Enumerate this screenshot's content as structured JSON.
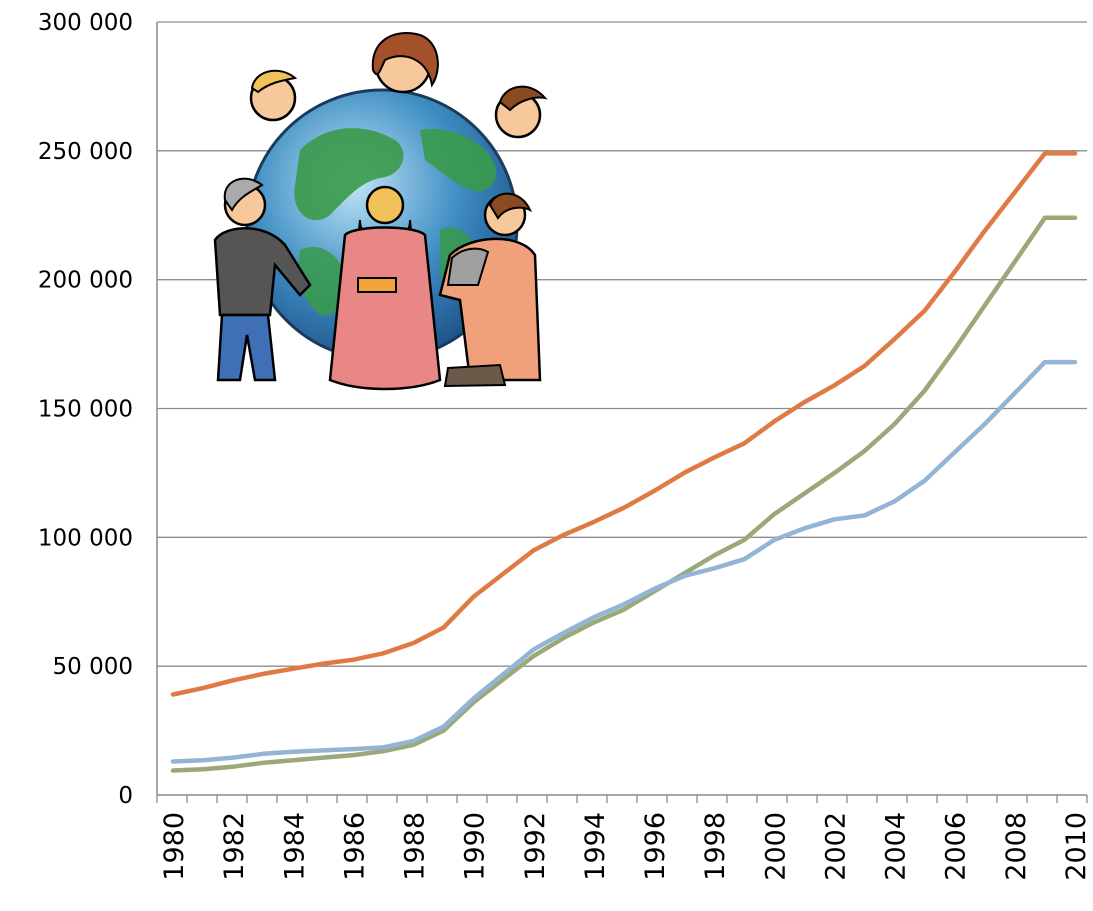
{
  "chart_data": {
    "type": "line",
    "title": "",
    "xlabel": "",
    "ylabel": "",
    "x": [
      1980,
      1981,
      1982,
      1983,
      1984,
      1985,
      1986,
      1987,
      1988,
      1989,
      1990,
      1991,
      1992,
      1993,
      1994,
      1995,
      1996,
      1997,
      1998,
      1999,
      2000,
      2001,
      2002,
      2003,
      2004,
      2005,
      2006,
      2007,
      2008,
      2009,
      2010
    ],
    "x_tick_labels": [
      "1980",
      "1982",
      "1984",
      "1986",
      "1988",
      "1990",
      "1992",
      "1994",
      "1996",
      "1998",
      "2000",
      "2002",
      "2004",
      "2006",
      "2008",
      "2010"
    ],
    "y_tick_labels": [
      "0",
      "50 000",
      "100 000",
      "150 000",
      "200 000",
      "250 000",
      "300 000"
    ],
    "ylim": [
      0,
      300000
    ],
    "grid": "horizontal",
    "legend": "none",
    "series": [
      {
        "color": "#E07A44",
        "values": [
          39000,
          41500,
          44500,
          47000,
          49000,
          51000,
          52500,
          55000,
          59000,
          65000,
          77000,
          86000,
          95000,
          101000,
          106000,
          111500,
          118000,
          125000,
          131000,
          136500,
          145000,
          152500,
          159000,
          166500,
          177000,
          188000,
          203000,
          219000,
          234000,
          249000,
          249000
        ]
      },
      {
        "color": "#9BA878",
        "values": [
          9500,
          10000,
          11000,
          12500,
          13500,
          14500,
          15500,
          17000,
          19500,
          25000,
          36000,
          45000,
          54000,
          61000,
          67000,
          72000,
          79000,
          86000,
          93000,
          99000,
          109000,
          117000,
          125000,
          133500,
          144000,
          157000,
          173000,
          190000,
          207000,
          224000,
          224000
        ]
      },
      {
        "color": "#93B4D4",
        "values": [
          13000,
          13500,
          14500,
          16000,
          16800,
          17300,
          17800,
          18500,
          21000,
          26500,
          37500,
          47000,
          56500,
          63000,
          69000,
          74000,
          80000,
          85000,
          88000,
          91500,
          99000,
          103500,
          107000,
          108500,
          114000,
          122000,
          133000,
          144000,
          156000,
          168000,
          168000
        ]
      }
    ]
  },
  "illustration": {
    "icon": "people-around-globe-clipart"
  }
}
